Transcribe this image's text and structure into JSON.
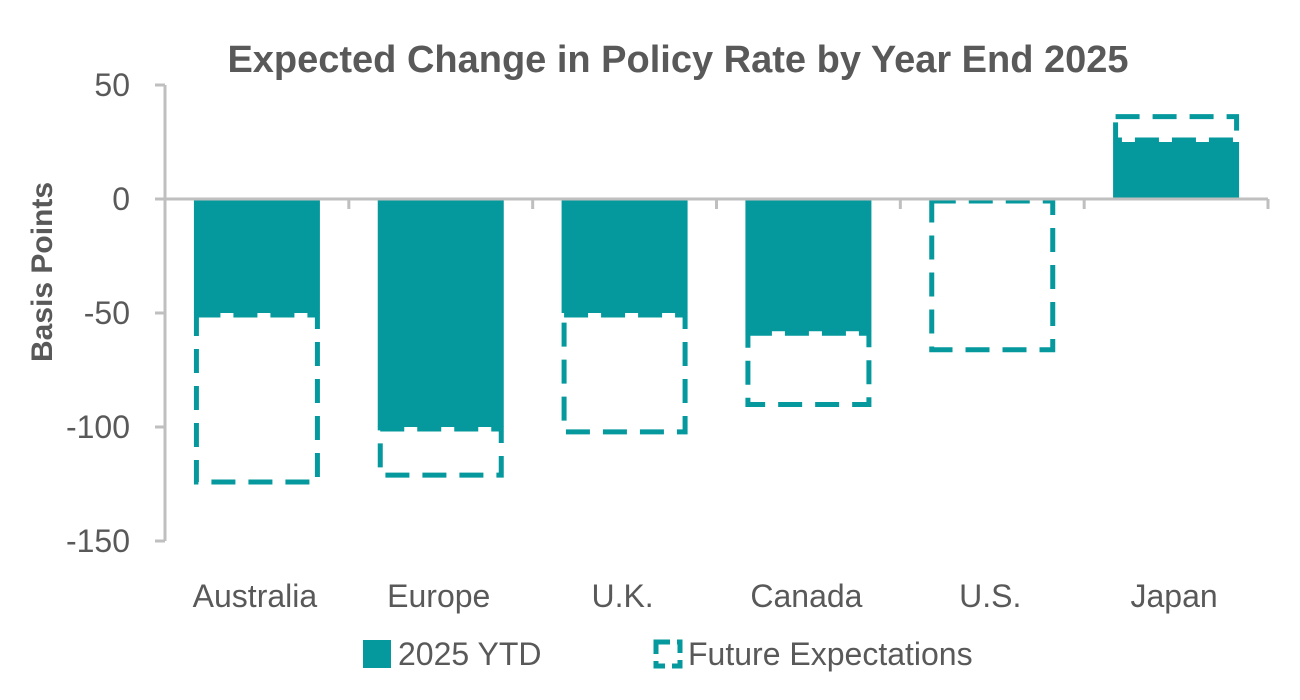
{
  "chart_data": {
    "type": "bar",
    "title": "Expected Change in Policy Rate by Year End 2025",
    "xlabel": "",
    "ylabel": "Basis Points",
    "ylim": [
      -150,
      50
    ],
    "yticks": [
      50,
      0,
      -50,
      -100,
      -150
    ],
    "categories": [
      "Australia",
      "Europe",
      "U.K.",
      "Canada",
      "U.S.",
      "Japan"
    ],
    "series": [
      {
        "name": "2025 YTD",
        "style": "solid",
        "values": [
          -50,
          -100,
          -50,
          -58,
          0,
          25
        ]
      },
      {
        "name": "Future Expectations",
        "style": "dashed",
        "values": [
          -75,
          -22,
          -53,
          -33,
          -67,
          12
        ]
      }
    ],
    "legend_position": "bottom",
    "colors": {
      "primary": "#05999E",
      "text": "#595959",
      "axis": "#BFBFBF"
    }
  }
}
